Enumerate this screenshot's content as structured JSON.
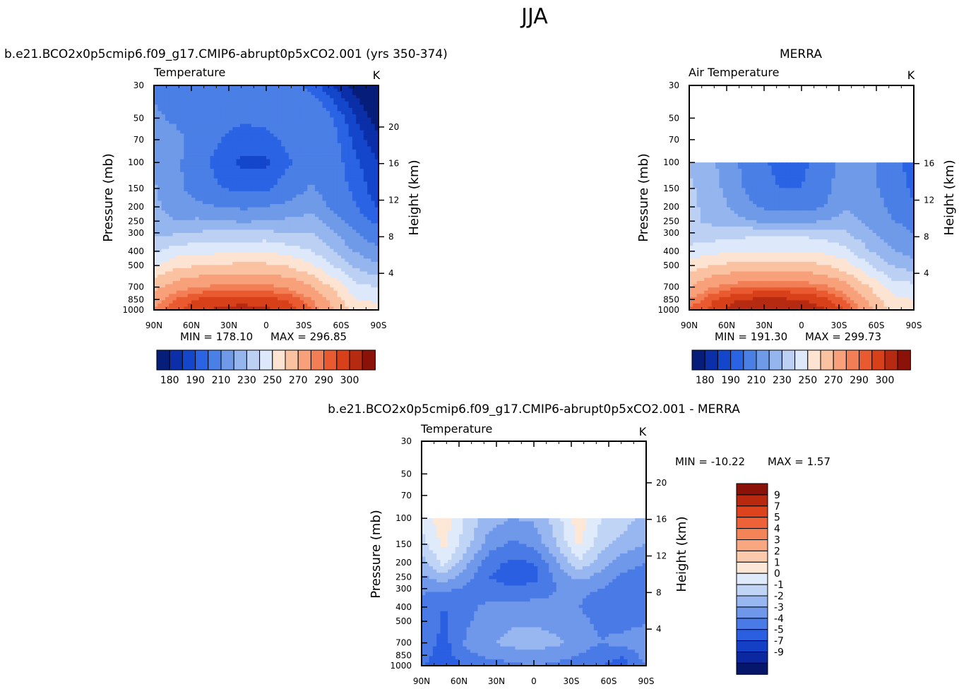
{
  "figure": {
    "season": "JJA"
  },
  "chart_data": [
    {
      "type": "contour",
      "id": "model",
      "header": "b.e21.BCO2x0p5cmip6.f09_g17.CMIP6-abrupt0p5xCO2.001 (yrs 350-374)",
      "variable": "Temperature",
      "units": "K",
      "xlabel": "",
      "ylabel": "Pressure (mb)",
      "y2label": "Height (km)",
      "x_ticks": [
        "90N",
        "60N",
        "30N",
        "0",
        "30S",
        "60S",
        "90S"
      ],
      "x_range": [
        90,
        -90
      ],
      "y_ticks": [
        30,
        50,
        70,
        100,
        150,
        200,
        250,
        300,
        400,
        500,
        700,
        850,
        1000
      ],
      "y_range_mb": [
        30,
        1000
      ],
      "height_ticks_km": [
        4,
        8,
        12,
        16,
        20
      ],
      "data_top_mb": 30,
      "min_label": "MIN = 178.10",
      "max_label": "MAX = 296.85",
      "min": 178.1,
      "max": 296.85,
      "colorbar_labels": [
        "180",
        "190",
        "210",
        "230",
        "250",
        "270",
        "290",
        "300"
      ],
      "palette": [
        "#061e7a",
        "#0a2fa8",
        "#1446cc",
        "#2a63e4",
        "#4a7fe6",
        "#6f9ae8",
        "#95b5ee",
        "#bcd0f3",
        "#dde9fa",
        "#fde3d2",
        "#fbc2a2",
        "#f7a07a",
        "#f27e55",
        "#ea5a30",
        "#d8401a",
        "#b52a10",
        "#8b1208"
      ],
      "grid": [
        [
          208,
          202,
          200,
          203,
          206,
          204,
          202,
          198,
          190,
          182,
          178
        ],
        [
          212,
          208,
          203,
          202,
          201,
          203,
          206,
          208,
          200,
          190,
          182
        ],
        [
          217,
          213,
          206,
          200,
          197,
          197,
          202,
          206,
          202,
          193,
          186
        ],
        [
          219,
          212,
          203,
          196,
          194,
          194,
          199,
          206,
          203,
          196,
          190
        ],
        [
          221,
          212,
          206,
          200,
          198,
          198,
          204,
          211,
          204,
          198,
          192
        ],
        [
          222,
          216,
          212,
          210,
          208,
          210,
          213,
          217,
          208,
          200,
          194
        ],
        [
          224,
          220,
          222,
          220,
          219,
          220,
          222,
          224,
          214,
          204,
          198
        ],
        [
          227,
          229,
          231,
          232,
          232,
          233,
          229,
          231,
          220,
          210,
          203
        ],
        [
          238,
          245,
          247,
          248,
          249,
          249,
          246,
          240,
          230,
          219,
          212
        ],
        [
          250,
          257,
          260,
          262,
          262,
          262,
          259,
          252,
          240,
          228,
          221
        ],
        [
          266,
          276,
          280,
          282,
          282,
          282,
          279,
          271,
          258,
          243,
          240
        ],
        [
          276,
          286,
          291,
          293,
          293,
          292,
          289,
          281,
          266,
          250,
          248
        ],
        [
          282,
          289,
          294,
          296,
          297,
          296,
          293,
          286,
          271,
          256,
          253
        ]
      ]
    },
    {
      "type": "contour",
      "id": "obs",
      "header": "MERRA",
      "variable": "Air Temperature",
      "units": "K",
      "xlabel": "",
      "ylabel": "Pressure (mb)",
      "y2label": "Height (km)",
      "x_ticks": [
        "90N",
        "60N",
        "30N",
        "0",
        "30S",
        "60S",
        "90S"
      ],
      "x_range": [
        90,
        -90
      ],
      "y_ticks": [
        30,
        50,
        70,
        100,
        150,
        200,
        250,
        300,
        400,
        500,
        700,
        850,
        1000
      ],
      "y_range_mb": [
        30,
        1000
      ],
      "height_ticks_km": [
        4,
        8,
        12,
        16
      ],
      "data_top_mb": 100,
      "min_label": "MIN = 191.30",
      "max_label": "MAX = 299.73",
      "min": 191.3,
      "max": 299.73,
      "colorbar_labels": [
        "180",
        "190",
        "210",
        "230",
        "250",
        "270",
        "290",
        "300"
      ],
      "palette": [
        "#061e7a",
        "#0a2fa8",
        "#1446cc",
        "#2a63e4",
        "#4a7fe6",
        "#6f9ae8",
        "#95b5ee",
        "#bcd0f3",
        "#dde9fa",
        "#fde3d2",
        "#fbc2a2",
        "#f7a07a",
        "#f27e55",
        "#ea5a30",
        "#d8401a",
        "#b52a10",
        "#8b1208"
      ],
      "grid": [
        [
          0,
          0,
          0,
          0,
          0,
          0,
          0,
          0,
          0,
          0,
          0
        ],
        [
          0,
          0,
          0,
          0,
          0,
          0,
          0,
          0,
          0,
          0,
          0
        ],
        [
          0,
          0,
          0,
          0,
          0,
          0,
          0,
          0,
          0,
          0,
          0
        ],
        [
          228,
          222,
          212,
          202,
          198,
          198,
          204,
          216,
          212,
          204,
          196
        ],
        [
          232,
          224,
          214,
          204,
          200,
          200,
          206,
          217,
          213,
          206,
          198
        ],
        [
          233,
          226,
          218,
          210,
          206,
          206,
          210,
          219,
          215,
          208,
          201
        ],
        [
          232,
          228,
          224,
          219,
          217,
          217,
          220,
          224,
          218,
          211,
          206
        ],
        [
          234,
          234,
          236,
          237,
          237,
          237,
          236,
          231,
          222,
          214,
          210
        ],
        [
          243,
          247,
          249,
          250,
          250,
          250,
          248,
          242,
          231,
          221,
          215
        ],
        [
          254,
          260,
          263,
          264,
          264,
          264,
          261,
          254,
          241,
          230,
          224
        ],
        [
          270,
          280,
          284,
          286,
          286,
          286,
          282,
          274,
          260,
          246,
          243
        ],
        [
          280,
          289,
          294,
          296,
          296,
          295,
          292,
          284,
          268,
          253,
          250
        ],
        [
          286,
          292,
          298,
          299,
          300,
          299,
          296,
          289,
          274,
          259,
          256
        ]
      ]
    },
    {
      "type": "contour",
      "id": "diff",
      "header": "b.e21.BCO2x0p5cmip6.f09_g17.CMIP6-abrupt0p5xCO2.001 - MERRA",
      "variable": "Temperature",
      "units": "K",
      "xlabel": "",
      "ylabel": "Pressure (mb)",
      "y2label": "Height (km)",
      "x_ticks": [
        "90N",
        "60N",
        "30N",
        "0",
        "30S",
        "60S",
        "90S"
      ],
      "x_range": [
        90,
        -90
      ],
      "y_ticks": [
        30,
        50,
        70,
        100,
        150,
        200,
        250,
        300,
        400,
        500,
        700,
        850,
        1000
      ],
      "y_range_mb": [
        30,
        1000
      ],
      "height_ticks_km": [
        4,
        8,
        12,
        16,
        20
      ],
      "data_top_mb": 100,
      "min_label": "MIN = -10.22",
      "max_label": "MAX = 1.57",
      "min": -10.22,
      "max": 1.57,
      "colorbar_labels": [
        "9",
        "7",
        "5",
        "4",
        "3",
        "2",
        "1",
        "0",
        "-1",
        "-2",
        "-3",
        "-4",
        "-5",
        "-7",
        "-9"
      ],
      "palette": [
        "#06176b",
        "#0b28a0",
        "#1440c8",
        "#2a5fe2",
        "#4a7ae6",
        "#6f98ea",
        "#98b6f0",
        "#c0d4f5",
        "#dfeafb",
        "#fde7d6",
        "#fbc9ab",
        "#f8a781",
        "#f38457",
        "#ed6238",
        "#dd431c",
        "#b8290f",
        "#8b1208"
      ],
      "grid": [
        [
          0,
          0,
          0,
          0,
          0,
          0,
          0,
          0,
          0,
          0,
          0
        ],
        [
          0,
          0,
          0,
          0,
          0,
          0,
          0,
          0,
          0,
          0,
          0
        ],
        [
          0,
          0,
          0,
          0,
          0,
          0,
          0,
          0,
          0,
          0,
          0
        ],
        [
          -0.5,
          0.6,
          -1.2,
          -2.5,
          -3.0,
          -2.8,
          -1.5,
          0.7,
          -1.0,
          -1.5,
          -2.5
        ],
        [
          -1.5,
          0.3,
          -1.6,
          -3.5,
          -4.2,
          -3.8,
          -2.0,
          0.2,
          -1.6,
          -2.5,
          -3.0
        ],
        [
          -2.5,
          -0.6,
          -2.8,
          -4.6,
          -5.2,
          -5.0,
          -3.2,
          -1.2,
          -2.6,
          -3.6,
          -4.0
        ],
        [
          -3.2,
          -2.3,
          -3.6,
          -5.0,
          -5.6,
          -5.4,
          -3.8,
          -2.6,
          -3.4,
          -4.2,
          -4.5
        ],
        [
          -3.8,
          -3.8,
          -4.2,
          -4.6,
          -4.8,
          -4.6,
          -4.0,
          -3.8,
          -4.0,
          -4.5,
          -4.8
        ],
        [
          -4.5,
          -5.0,
          -4.2,
          -3.8,
          -3.6,
          -3.6,
          -3.8,
          -4.0,
          -4.4,
          -4.8,
          -5.0
        ],
        [
          -4.0,
          -5.2,
          -4.2,
          -3.4,
          -3.2,
          -3.2,
          -3.4,
          -3.8,
          -4.2,
          -4.4,
          -4.2
        ],
        [
          -4.2,
          -5.4,
          -3.8,
          -3.2,
          -2.6,
          -2.4,
          -2.8,
          -3.4,
          -4.0,
          -3.6,
          -3.0
        ],
        [
          -4.6,
          -5.6,
          -4.2,
          -3.8,
          -3.6,
          -3.4,
          -3.6,
          -4.0,
          -4.6,
          -5.0,
          -3.5
        ],
        [
          -4.8,
          -5.8,
          -4.8,
          -4.4,
          -4.2,
          -4.0,
          -4.2,
          -4.6,
          -5.0,
          -5.4,
          -4.0
        ]
      ]
    }
  ]
}
